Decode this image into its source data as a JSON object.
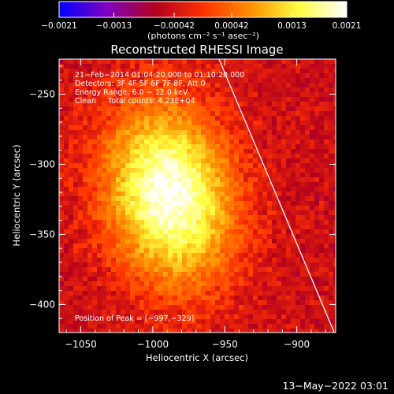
{
  "chart_data": {
    "type": "heatmap",
    "title": "Reconstructed RHESSI Image",
    "xlabel": "Heliocentric X (arcsec)",
    "ylabel": "Heliocentric Y (arcsec)",
    "xlim": [
      -1065,
      -873
    ],
    "ylim": [
      -420,
      -225
    ],
    "x_ticks": [
      -1050,
      -1000,
      -950,
      -900
    ],
    "x_tick_labels": [
      "−1050",
      "−1000",
      "−950",
      "−900"
    ],
    "y_ticks": [
      -250,
      -300,
      -350,
      -400
    ],
    "y_tick_labels": [
      "−250",
      "−300",
      "−350",
      "−400"
    ],
    "colorbar": {
      "range": [
        -0.0021,
        0.0021
      ],
      "ticks": [
        -0.0021,
        -0.0013,
        -0.00042,
        0.00042,
        0.0013,
        0.0021
      ],
      "tick_labels": [
        "−0.0021",
        "−0.0013",
        "−0.00042",
        "0.00042",
        "0.0013",
        "0.0021"
      ],
      "units_label": "(photons cm⁻² s⁻¹ asec⁻²)",
      "colors": [
        "#0000ff",
        "#8000c0",
        "#b00020",
        "#ff3000",
        "#ff9000",
        "#ffff40",
        "#ffffff"
      ]
    },
    "annotations": [
      "21−Feb−2014 01:04:20.000 to 01:10:20.000",
      "Detectors: 3F 4F 5F 6F 7F 8F, Att 0",
      "Energy Range: 6.0 − 12.0 keV",
      "Clean     Total counts: 4.23E+04"
    ],
    "peak": {
      "label": "Position of Peak = [−997,−329]",
      "x": -997,
      "y": -329
    },
    "limb_line": {
      "x": [
        -954,
        -874
      ],
      "y": [
        -225,
        -420
      ]
    },
    "source_blob": {
      "center_x": -990,
      "center_y": -320,
      "peak_value": 0.0021
    },
    "grid": false
  },
  "footer": {
    "timestamp": "13−May−2022 03:01"
  }
}
